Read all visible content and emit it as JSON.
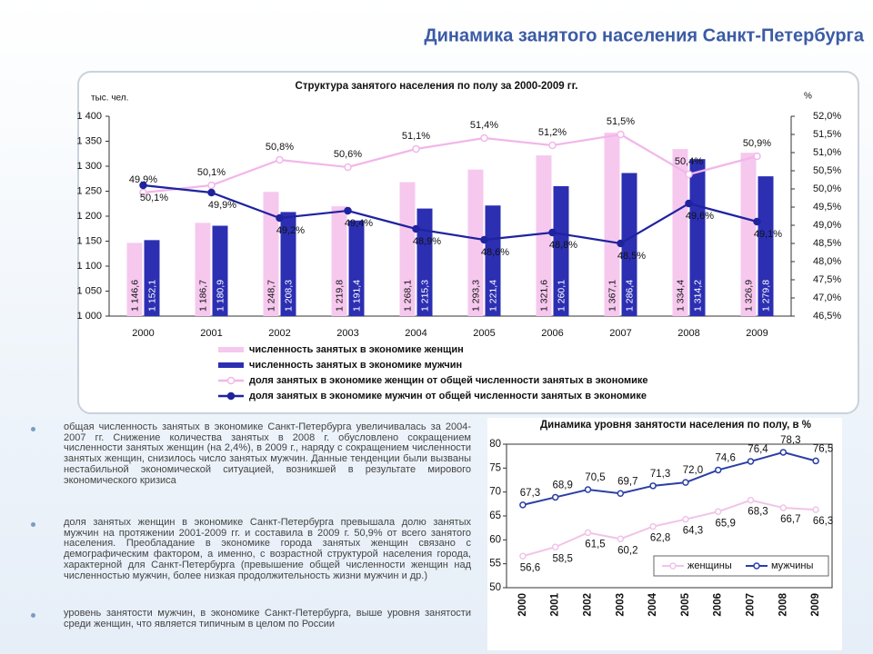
{
  "title": "Динамика занятого населения Санкт-Петербурга",
  "bullets": [
    "общая численность занятых в экономике Санкт-Петербурга увеличивалась за 2004-2007 гг. Снижение количества занятых в 2008 г. обусловлено сокращением численности занятых женщин (на 2,4%), в 2009 г., наряду с сокращением численности занятых женщин, снизилось число занятых мужчин. Данные тенденции были вызваны нестабильной экономической ситуацией, возникшей в результате мирового экономического кризиса",
    "доля занятых женщин в экономике Санкт-Петербурга превышала долю занятых мужчин на протяжении 2001-2009 гг. и составила в 2009 г. 50,9% от всего занятого населения. Преобладание в экономике города занятых женщин связано с демографическим фактором, а именно, с возрастной структурой населения города, характерной для Санкт-Петербурга (превышение общей численности женщин над численностью мужчин, более низкая продолжительность жизни мужчин и др.)",
    "уровень занятости мужчин, в экономике Санкт-Петербурга, выше уровня занятости среди женщин, что является типичным в целом по России"
  ],
  "chart_data": [
    {
      "type": "bar_line",
      "title": "Структура занятого населения по полу за 2000-2009 гг.",
      "ylabel": "тыс. чел.",
      "y2label": "%",
      "categories": [
        "2000",
        "2001",
        "2002",
        "2003",
        "2004",
        "2005",
        "2006",
        "2007",
        "2008",
        "2009"
      ],
      "ylim": [
        1000,
        1400
      ],
      "yticks": [
        {
          "value": 1000,
          "label": "1 000"
        },
        {
          "value": 1050,
          "label": "1 050"
        },
        {
          "value": 1100,
          "label": "1 100"
        },
        {
          "value": 1150,
          "label": "1 150"
        },
        {
          "value": 1200,
          "label": "1 200"
        },
        {
          "value": 1250,
          "label": "1 250"
        },
        {
          "value": 1300,
          "label": "1 300"
        },
        {
          "value": 1350,
          "label": "1 350"
        },
        {
          "value": 1400,
          "label": "1 400"
        }
      ],
      "y2lim": [
        46.5,
        52
      ],
      "y2ticks": [
        {
          "value": 46.5,
          "label": "46,5%"
        },
        {
          "value": 47,
          "label": "47,0%"
        },
        {
          "value": 47.5,
          "label": "47,5%"
        },
        {
          "value": 48,
          "label": "48,0%"
        },
        {
          "value": 48.5,
          "label": "48,5%"
        },
        {
          "value": 49,
          "label": "49,0%"
        },
        {
          "value": 49.5,
          "label": "49,5%"
        },
        {
          "value": 50,
          "label": "50,0%"
        },
        {
          "value": 50.5,
          "label": "50,5%"
        },
        {
          "value": 51,
          "label": "51,0%"
        },
        {
          "value": 51.5,
          "label": "51,5%"
        },
        {
          "value": 52,
          "label": "52,0%"
        }
      ],
      "series": [
        {
          "name": "численность занятых в экономике женщин",
          "type": "bar",
          "color": "#f6c8ee",
          "values": [
            1146.6,
            1186.7,
            1248.7,
            1219.8,
            1268.1,
            1293.3,
            1321.6,
            1367.1,
            1334.4,
            1326.9
          ],
          "value_labels": [
            "1 146,6",
            "1 186,7",
            "1 248,7",
            "1 219,8",
            "1 268,1",
            "1 293,3",
            "1 321,6",
            "1 367,1",
            "1 334,4",
            "1 326,9"
          ]
        },
        {
          "name": "численность занятых в экономике мужчин",
          "type": "bar",
          "color": "#2c2fb2",
          "values": [
            1152.1,
            1180.9,
            1208.3,
            1191.4,
            1215.3,
            1221.4,
            1260.1,
            1286.4,
            1314.2,
            1279.8
          ],
          "value_labels": [
            "1 152,1",
            "1 180,9",
            "1 208,3",
            "1 191,4",
            "1 215,3",
            "1 221,4",
            "1 260,1",
            "1 286,4",
            "1 314,2",
            "1 279,8"
          ]
        },
        {
          "name": "доля занятых в экономике женщин от общей численности занятых в экономике",
          "type": "line",
          "axis": "y2",
          "color": "#f2b6ea",
          "values": [
            49.9,
            50.1,
            50.8,
            50.6,
            51.1,
            51.4,
            51.2,
            51.5,
            50.4,
            50.9
          ],
          "value_labels": [
            "49,9%",
            "50,1%",
            "50,8%",
            "50,6%",
            "51,1%",
            "51,4%",
            "51,2%",
            "51,5%",
            "50,4%",
            "50,9%"
          ]
        },
        {
          "name": "доля занятых в экономике мужчин от общей численности занятых в экономике",
          "type": "line",
          "axis": "y2",
          "color": "#1f239e",
          "values": [
            50.1,
            49.9,
            49.2,
            49.4,
            48.9,
            48.6,
            48.8,
            48.5,
            49.6,
            49.1
          ],
          "value_labels": [
            "50,1%",
            "49,9%",
            "49,2%",
            "49,4%",
            "48,9%",
            "48,6%",
            "48,8%",
            "48,5%",
            "49,6%",
            "49,1%"
          ]
        }
      ]
    },
    {
      "type": "line",
      "title": "Динамика уровня занятости населения по полу, в %",
      "categories": [
        "2000",
        "2001",
        "2002",
        "2003",
        "2004",
        "2005",
        "2006",
        "2007",
        "2008",
        "2009"
      ],
      "ylim": [
        50,
        80
      ],
      "yticks": [
        50,
        55,
        60,
        65,
        70,
        75,
        80
      ],
      "legend": "lower right",
      "series": [
        {
          "name": "женщины",
          "color": "#f0c4e8",
          "values": [
            56.6,
            58.5,
            61.5,
            60.2,
            62.8,
            64.3,
            65.9,
            68.3,
            66.7,
            66.3
          ],
          "value_labels": [
            "56,6",
            "58,5",
            "61,5",
            "60,2",
            "62,8",
            "64,3",
            "65,9",
            "68,3",
            "66,7",
            "66,3"
          ]
        },
        {
          "name": "мужчины",
          "color": "#2a3ea6",
          "values": [
            67.3,
            68.9,
            70.5,
            69.7,
            71.3,
            72.0,
            74.6,
            76.4,
            78.3,
            76.5
          ],
          "value_labels": [
            "67,3",
            "68,9",
            "70,5",
            "69,7",
            "71,3",
            "72,0",
            "74,6",
            "76,4",
            "78,3",
            "76,5"
          ]
        }
      ]
    }
  ]
}
